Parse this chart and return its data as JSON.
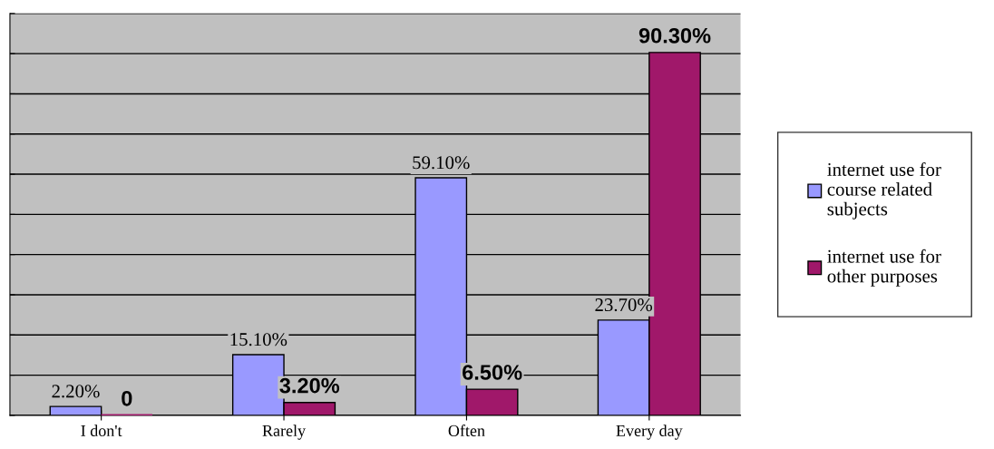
{
  "chart_data": {
    "type": "bar",
    "categories": [
      "I don't",
      "Rarely",
      "Often",
      "Every day"
    ],
    "series": [
      {
        "name": "internet use for course related subjects",
        "color": "#9999ff",
        "values": [
          2.2,
          15.1,
          59.1,
          23.7
        ],
        "value_labels": [
          "2.20%",
          "15.10%",
          "59.10%",
          "23.70%"
        ]
      },
      {
        "name": "internet use for other purposes",
        "color": "#a0186a",
        "values": [
          0,
          3.2,
          6.5,
          90.3
        ],
        "value_labels": [
          "0",
          "3.20%",
          "6.50%",
          "90.30%"
        ]
      }
    ],
    "ylim": [
      0,
      100
    ],
    "yticks": [
      {
        "value": 0,
        "label": null
      },
      {
        "value": 10,
        "label": null
      },
      {
        "value": 20,
        "label": null
      },
      {
        "value": 30,
        "label": null
      },
      {
        "value": 40,
        "label": null
      },
      {
        "value": 50,
        "label": null
      },
      {
        "value": 60,
        "label": null
      },
      {
        "value": 70,
        "label": null
      },
      {
        "value": 80,
        "label": null
      },
      {
        "value": 90,
        "label": null
      },
      {
        "value": 100,
        "label": null
      }
    ],
    "tick_labels": "x",
    "grid": "y",
    "legend": "right"
  }
}
